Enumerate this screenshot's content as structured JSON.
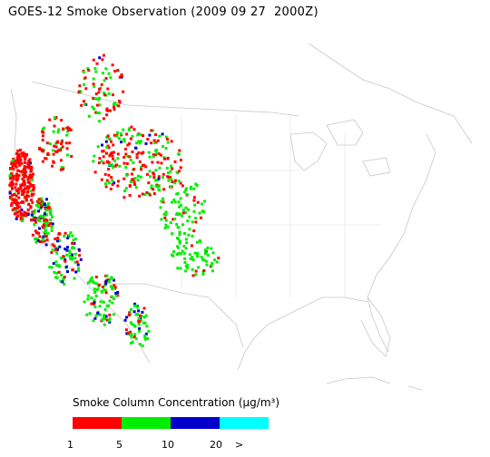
{
  "title": "GOES-12 Smoke Observation (2009 09 27  2000Z)",
  "legend": {
    "title": "Smoke Column Concentration (μg/m³)",
    "colors": [
      "#ff0000",
      "#00ee00",
      "#0000cc",
      "#00ffff"
    ],
    "ticks": [
      "1",
      "5",
      "10",
      "20",
      ">"
    ]
  }
}
